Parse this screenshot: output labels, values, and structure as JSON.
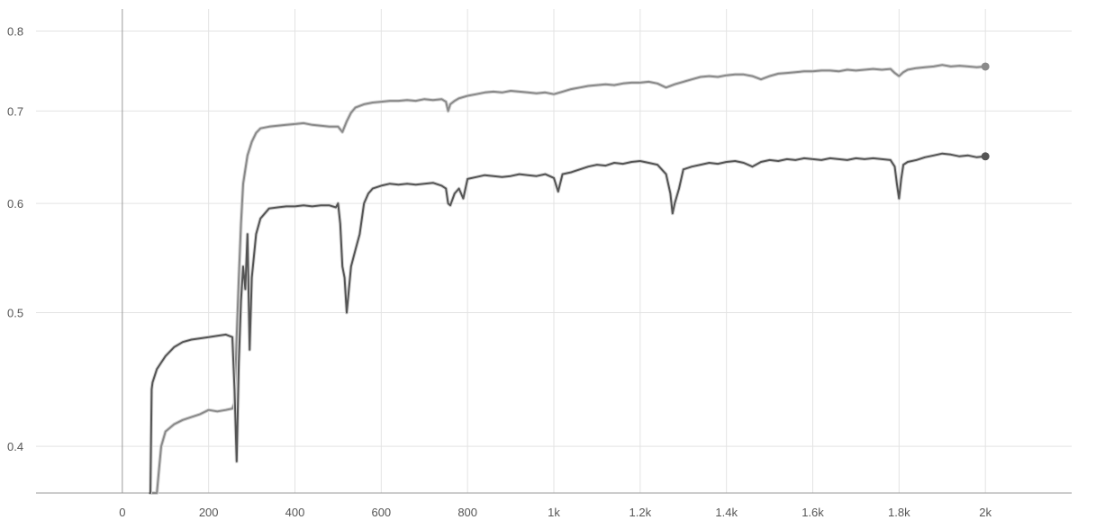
{
  "chart_data": {
    "type": "line",
    "title": "",
    "xlabel": "",
    "ylabel": "",
    "xlim": [
      -200,
      2200
    ],
    "ylim": [
      0.37,
      0.83
    ],
    "yscale": "log",
    "grid": true,
    "legend": "none",
    "x_ticks": [
      {
        "value": 0,
        "label": "0"
      },
      {
        "value": 200,
        "label": "200"
      },
      {
        "value": 400,
        "label": "400"
      },
      {
        "value": 600,
        "label": "600"
      },
      {
        "value": 800,
        "label": "800"
      },
      {
        "value": 1000,
        "label": "1k"
      },
      {
        "value": 1200,
        "label": "1.2k"
      },
      {
        "value": 1400,
        "label": "1.4k"
      },
      {
        "value": 1600,
        "label": "1.6k"
      },
      {
        "value": 1800,
        "label": "1.8k"
      },
      {
        "value": 2000,
        "label": "2k"
      }
    ],
    "y_ticks": [
      {
        "value": 0.4,
        "label": "0.4"
      },
      {
        "value": 0.5,
        "label": "0.5"
      },
      {
        "value": 0.6,
        "label": "0.6"
      },
      {
        "value": 0.7,
        "label": "0.7"
      },
      {
        "value": 0.8,
        "label": "0.8"
      }
    ],
    "series": [
      {
        "color": "#8a8a8a",
        "raw_color": "#d6d6d6",
        "x": [
          65,
          70,
          80,
          85,
          90,
          100,
          120,
          140,
          160,
          180,
          200,
          220,
          240,
          255,
          260,
          262,
          265,
          270,
          275,
          280,
          290,
          300,
          310,
          320,
          340,
          360,
          380,
          400,
          420,
          440,
          460,
          480,
          500,
          510,
          520,
          530,
          540,
          560,
          580,
          600,
          620,
          640,
          660,
          680,
          700,
          720,
          740,
          750,
          755,
          760,
          770,
          780,
          800,
          820,
          840,
          860,
          880,
          900,
          920,
          940,
          960,
          980,
          1000,
          1020,
          1040,
          1060,
          1080,
          1100,
          1120,
          1140,
          1160,
          1180,
          1200,
          1220,
          1240,
          1260,
          1280,
          1300,
          1320,
          1340,
          1360,
          1380,
          1400,
          1420,
          1440,
          1460,
          1480,
          1500,
          1520,
          1540,
          1560,
          1580,
          1600,
          1620,
          1640,
          1660,
          1680,
          1700,
          1720,
          1740,
          1760,
          1780,
          1790,
          1800,
          1810,
          1820,
          1840,
          1860,
          1880,
          1900,
          1920,
          1940,
          1960,
          1980,
          2000
        ],
        "values": [
          0.36,
          0.36,
          0.365,
          0.385,
          0.4,
          0.41,
          0.415,
          0.418,
          0.42,
          0.422,
          0.425,
          0.424,
          0.425,
          0.426,
          0.43,
          0.45,
          0.48,
          0.53,
          0.58,
          0.62,
          0.65,
          0.665,
          0.675,
          0.68,
          0.682,
          0.683,
          0.684,
          0.685,
          0.686,
          0.684,
          0.683,
          0.682,
          0.682,
          0.676,
          0.688,
          0.698,
          0.704,
          0.708,
          0.71,
          0.711,
          0.712,
          0.712,
          0.713,
          0.712,
          0.714,
          0.713,
          0.714,
          0.711,
          0.7,
          0.708,
          0.712,
          0.715,
          0.718,
          0.72,
          0.722,
          0.723,
          0.722,
          0.724,
          0.723,
          0.722,
          0.721,
          0.722,
          0.72,
          0.723,
          0.726,
          0.728,
          0.73,
          0.731,
          0.732,
          0.731,
          0.733,
          0.734,
          0.734,
          0.735,
          0.733,
          0.728,
          0.732,
          0.735,
          0.738,
          0.741,
          0.742,
          0.741,
          0.743,
          0.744,
          0.744,
          0.742,
          0.738,
          0.742,
          0.745,
          0.746,
          0.747,
          0.748,
          0.748,
          0.749,
          0.749,
          0.748,
          0.75,
          0.749,
          0.75,
          0.751,
          0.75,
          0.751,
          0.746,
          0.742,
          0.747,
          0.75,
          0.752,
          0.753,
          0.754,
          0.756,
          0.754,
          0.755,
          0.754,
          0.753,
          0.754
        ]
      },
      {
        "color": "#555555",
        "raw_color": "#d6d6d6",
        "x": [
          62,
          65,
          68,
          70,
          75,
          80,
          90,
          100,
          120,
          140,
          160,
          180,
          200,
          220,
          240,
          255,
          260,
          265,
          270,
          275,
          280,
          285,
          290,
          295,
          300,
          310,
          320,
          330,
          340,
          360,
          380,
          400,
          420,
          440,
          460,
          480,
          495,
          500,
          505,
          510,
          515,
          520,
          530,
          540,
          550,
          560,
          570,
          580,
          600,
          620,
          640,
          660,
          680,
          700,
          720,
          740,
          750,
          755,
          760,
          770,
          780,
          790,
          800,
          820,
          840,
          860,
          880,
          900,
          920,
          940,
          960,
          980,
          1000,
          1010,
          1020,
          1040,
          1060,
          1080,
          1100,
          1120,
          1140,
          1160,
          1180,
          1200,
          1220,
          1240,
          1260,
          1270,
          1275,
          1280,
          1290,
          1300,
          1320,
          1340,
          1360,
          1380,
          1400,
          1420,
          1440,
          1460,
          1480,
          1500,
          1520,
          1540,
          1560,
          1580,
          1600,
          1620,
          1640,
          1660,
          1680,
          1700,
          1720,
          1740,
          1760,
          1780,
          1790,
          1795,
          1800,
          1805,
          1810,
          1820,
          1840,
          1860,
          1880,
          1900,
          1920,
          1940,
          1960,
          1980,
          2000
        ],
        "values": [
          0.36,
          0.36,
          0.44,
          0.445,
          0.45,
          0.455,
          0.46,
          0.465,
          0.472,
          0.476,
          0.478,
          0.479,
          0.48,
          0.481,
          0.482,
          0.48,
          0.44,
          0.39,
          0.46,
          0.51,
          0.54,
          0.52,
          0.57,
          0.47,
          0.53,
          0.57,
          0.585,
          0.59,
          0.595,
          0.596,
          0.597,
          0.597,
          0.598,
          0.597,
          0.598,
          0.598,
          0.596,
          0.6,
          0.58,
          0.54,
          0.53,
          0.5,
          0.54,
          0.555,
          0.57,
          0.6,
          0.61,
          0.615,
          0.618,
          0.62,
          0.619,
          0.62,
          0.619,
          0.62,
          0.621,
          0.618,
          0.615,
          0.6,
          0.598,
          0.61,
          0.615,
          0.605,
          0.625,
          0.627,
          0.629,
          0.628,
          0.627,
          0.628,
          0.63,
          0.629,
          0.628,
          0.63,
          0.626,
          0.612,
          0.63,
          0.632,
          0.635,
          0.638,
          0.64,
          0.639,
          0.642,
          0.641,
          0.643,
          0.644,
          0.642,
          0.64,
          0.63,
          0.61,
          0.59,
          0.6,
          0.615,
          0.635,
          0.638,
          0.64,
          0.642,
          0.641,
          0.643,
          0.644,
          0.642,
          0.638,
          0.643,
          0.645,
          0.644,
          0.646,
          0.645,
          0.647,
          0.646,
          0.645,
          0.647,
          0.646,
          0.645,
          0.647,
          0.646,
          0.647,
          0.646,
          0.645,
          0.638,
          0.62,
          0.605,
          0.625,
          0.64,
          0.643,
          0.645,
          0.648,
          0.65,
          0.652,
          0.651,
          0.649,
          0.65,
          0.648,
          0.649
        ]
      }
    ]
  }
}
